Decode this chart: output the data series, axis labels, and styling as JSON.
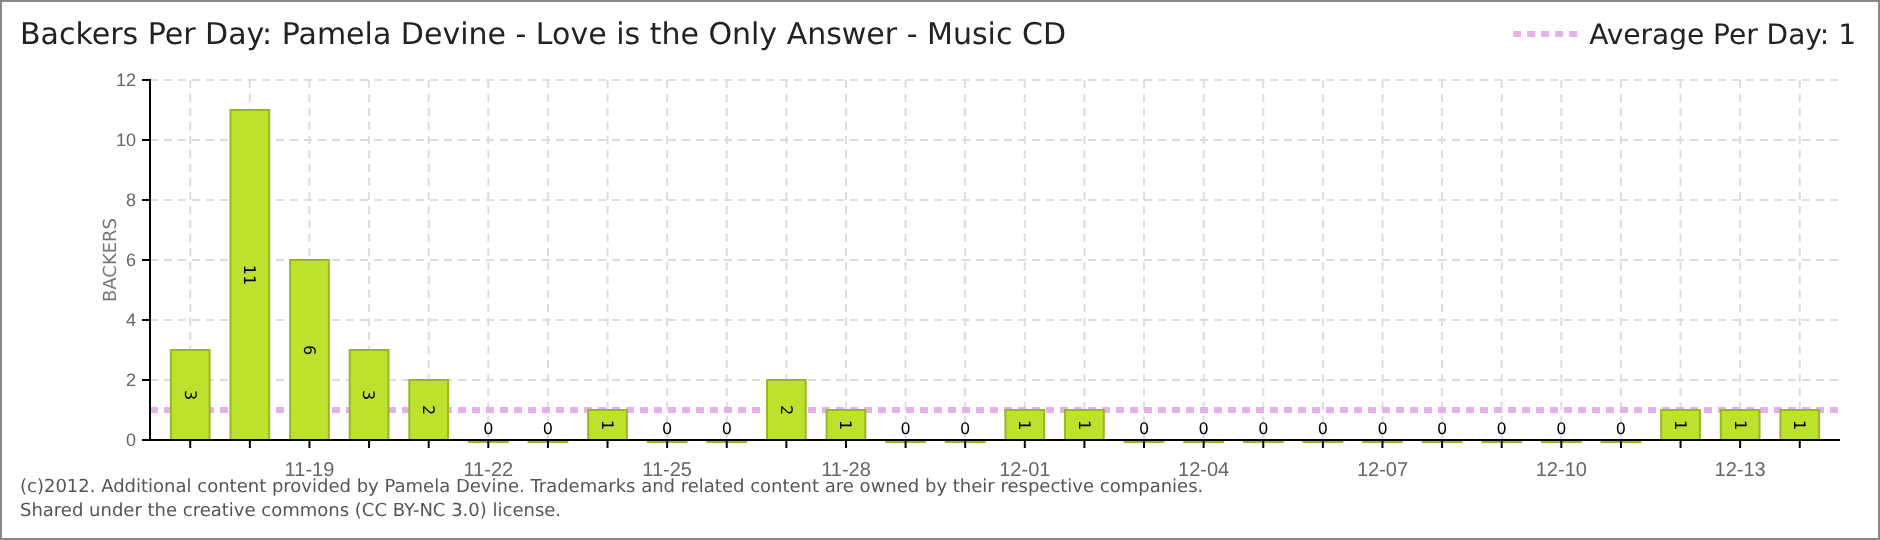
{
  "chart_data": {
    "type": "bar",
    "title": "Backers Per Day: Pamela Devine - Love is the Only Answer - Music CD",
    "ylabel": "BACKERS",
    "categories": [
      null,
      null,
      "11-19",
      null,
      null,
      "11-22",
      null,
      null,
      "11-25",
      null,
      null,
      "11-28",
      null,
      null,
      "12-01",
      null,
      null,
      "12-04",
      null,
      null,
      "12-07",
      null,
      null,
      "12-10",
      null,
      null,
      "12-13",
      null
    ],
    "values": [
      3,
      11,
      6,
      3,
      2,
      0,
      0,
      1,
      0,
      0,
      2,
      1,
      0,
      0,
      1,
      1,
      0,
      0,
      0,
      0,
      0,
      0,
      0,
      0,
      0,
      1,
      1,
      1
    ],
    "color": "#bde22e",
    "ylim": [
      0,
      12
    ],
    "yticks": [
      0,
      2,
      4,
      6,
      8,
      10,
      12
    ],
    "grid": true,
    "data_labels": true,
    "legend": "top right",
    "ref_lines": [
      {
        "axis": "y",
        "value": 1,
        "label": "Average Per Day: 1",
        "color": "#e6b0ec",
        "line_style": "dashed"
      }
    ],
    "annotations": [
      "(c)2012. Additional content provided by Pamela Devine. Trademarks and related content are owned by their respective companies.",
      "Shared under the creative commons (CC BY-NC 3.0) license."
    ]
  }
}
